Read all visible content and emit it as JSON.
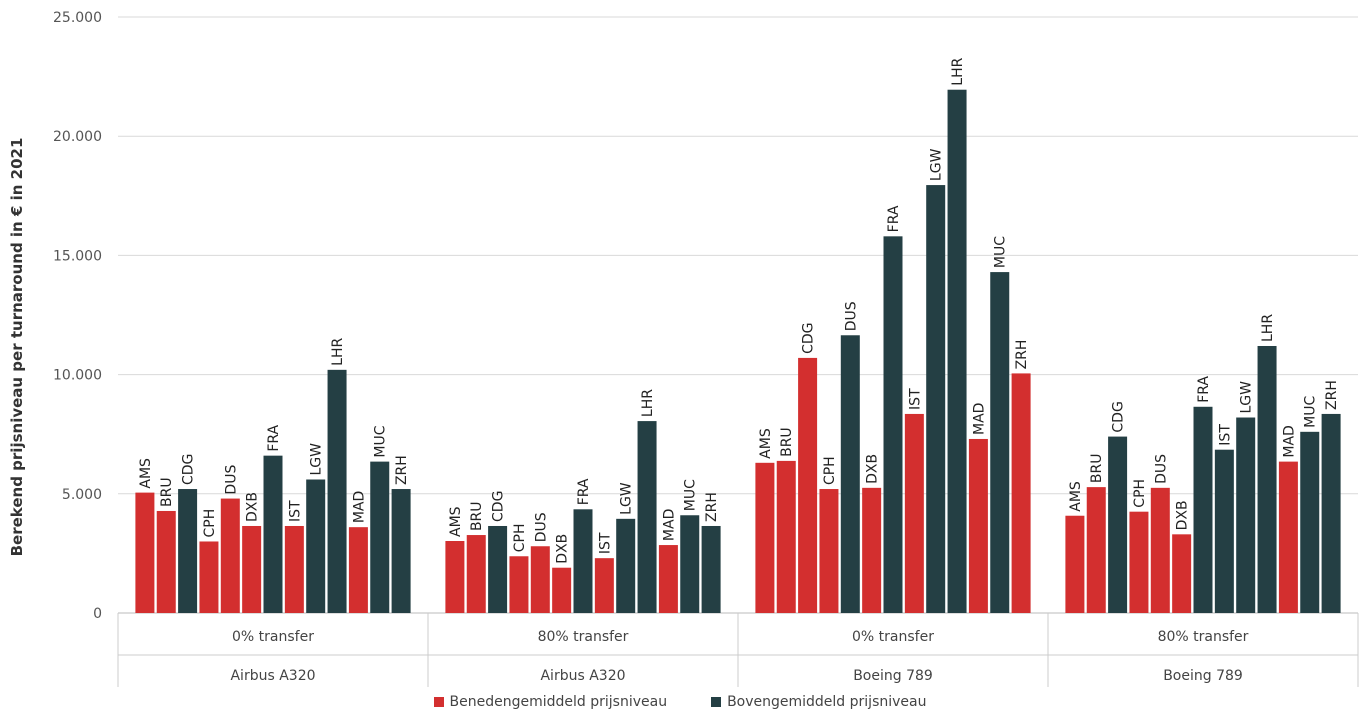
{
  "chart_data": {
    "type": "bar",
    "ylabel": "Berekend prijsniveau per turnaround in € in 2021",
    "xlabel": "",
    "ylim": [
      0,
      25000
    ],
    "yticks": [
      0,
      5000,
      10000,
      15000,
      20000,
      25000
    ],
    "ytick_labels": [
      "0",
      "5.000",
      "10.000",
      "15.000",
      "20.000",
      "25.000"
    ],
    "grid": true,
    "legend_position": "bottom",
    "colors": {
      "below": "#d32f2f",
      "above": "#243f44"
    },
    "legend": [
      {
        "key": "below",
        "label": "Benedengemiddeld prijsniveau"
      },
      {
        "key": "above",
        "label": "Bovengemiddeld prijsniveau"
      }
    ],
    "groups": [
      {
        "scenario": "0% transfer",
        "aircraft": "Airbus A320",
        "bars": [
          {
            "airport": "AMS",
            "value": 5050,
            "level": "below"
          },
          {
            "airport": "BRU",
            "value": 4280,
            "level": "below"
          },
          {
            "airport": "CDG",
            "value": 5200,
            "level": "above"
          },
          {
            "airport": "CPH",
            "value": 3000,
            "level": "below"
          },
          {
            "airport": "DUS",
            "value": 4800,
            "level": "below"
          },
          {
            "airport": "DXB",
            "value": 3650,
            "level": "below"
          },
          {
            "airport": "FRA",
            "value": 6600,
            "level": "above"
          },
          {
            "airport": "IST",
            "value": 3650,
            "level": "below"
          },
          {
            "airport": "LGW",
            "value": 5600,
            "level": "above"
          },
          {
            "airport": "LHR",
            "value": 10200,
            "level": "above"
          },
          {
            "airport": "MAD",
            "value": 3600,
            "level": "below"
          },
          {
            "airport": "MUC",
            "value": 6350,
            "level": "above"
          },
          {
            "airport": "ZRH",
            "value": 5200,
            "level": "above"
          }
        ]
      },
      {
        "scenario": "80% transfer",
        "aircraft": "Airbus A320",
        "bars": [
          {
            "airport": "AMS",
            "value": 3020,
            "level": "below"
          },
          {
            "airport": "BRU",
            "value": 3270,
            "level": "below"
          },
          {
            "airport": "CDG",
            "value": 3650,
            "level": "above"
          },
          {
            "airport": "CPH",
            "value": 2380,
            "level": "below"
          },
          {
            "airport": "DUS",
            "value": 2800,
            "level": "below"
          },
          {
            "airport": "DXB",
            "value": 1900,
            "level": "below"
          },
          {
            "airport": "FRA",
            "value": 4350,
            "level": "above"
          },
          {
            "airport": "IST",
            "value": 2300,
            "level": "below"
          },
          {
            "airport": "LGW",
            "value": 3950,
            "level": "above"
          },
          {
            "airport": "LHR",
            "value": 8050,
            "level": "above"
          },
          {
            "airport": "MAD",
            "value": 2850,
            "level": "below"
          },
          {
            "airport": "MUC",
            "value": 4100,
            "level": "above"
          },
          {
            "airport": "ZRH",
            "value": 3650,
            "level": "above"
          }
        ]
      },
      {
        "scenario": "0% transfer",
        "aircraft": "Boeing 789",
        "bars": [
          {
            "airport": "AMS",
            "value": 6300,
            "level": "below"
          },
          {
            "airport": "BRU",
            "value": 6380,
            "level": "below"
          },
          {
            "airport": "CDG",
            "value": 10700,
            "level": "below"
          },
          {
            "airport": "CPH",
            "value": 5200,
            "level": "below"
          },
          {
            "airport": "DUS",
            "value": 11650,
            "level": "above"
          },
          {
            "airport": "DXB",
            "value": 5250,
            "level": "below"
          },
          {
            "airport": "FRA",
            "value": 15800,
            "level": "above"
          },
          {
            "airport": "IST",
            "value": 8350,
            "level": "below"
          },
          {
            "airport": "LGW",
            "value": 17950,
            "level": "above"
          },
          {
            "airport": "LHR",
            "value": 21950,
            "level": "above"
          },
          {
            "airport": "MAD",
            "value": 7300,
            "level": "below"
          },
          {
            "airport": "MUC",
            "value": 14300,
            "level": "above"
          },
          {
            "airport": "ZRH",
            "value": 10050,
            "level": "below"
          }
        ]
      },
      {
        "scenario": "80% transfer",
        "aircraft": "Boeing 789",
        "bars": [
          {
            "airport": "AMS",
            "value": 4080,
            "level": "below"
          },
          {
            "airport": "BRU",
            "value": 5280,
            "level": "below"
          },
          {
            "airport": "CDG",
            "value": 7400,
            "level": "above"
          },
          {
            "airport": "CPH",
            "value": 4250,
            "level": "below"
          },
          {
            "airport": "DUS",
            "value": 5250,
            "level": "below"
          },
          {
            "airport": "DXB",
            "value": 3300,
            "level": "below"
          },
          {
            "airport": "FRA",
            "value": 8650,
            "level": "above"
          },
          {
            "airport": "IST",
            "value": 6850,
            "level": "above"
          },
          {
            "airport": "LGW",
            "value": 8200,
            "level": "above"
          },
          {
            "airport": "LHR",
            "value": 11200,
            "level": "above"
          },
          {
            "airport": "MAD",
            "value": 6350,
            "level": "below"
          },
          {
            "airport": "MUC",
            "value": 7600,
            "level": "above"
          },
          {
            "airport": "ZRH",
            "value": 8350,
            "level": "above"
          }
        ]
      }
    ]
  }
}
